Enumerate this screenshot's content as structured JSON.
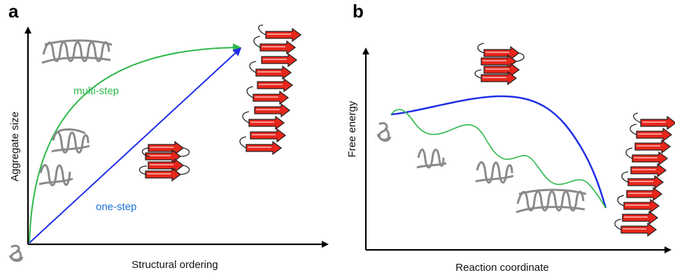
{
  "panels": {
    "a": {
      "label": "a",
      "xlabel": "Structural ordering",
      "ylabel": "Aggregate size",
      "multi_step_label": "multi-step",
      "one_step_label": "one-step"
    },
    "b": {
      "label": "b",
      "xlabel": "Reaction coordinate",
      "ylabel": "Free energy"
    }
  },
  "colors": {
    "multi_step": "#2db84a",
    "one_step": "#1f2ee6",
    "one_step_text": "#1a6fd6",
    "sheet_fill": "#e8261b",
    "sheet_stroke": "#222222",
    "coil": "#8a8a8a",
    "axis": "#000000"
  },
  "icons": [
    "random-coil-icon",
    "helical-oligomer-icon",
    "beta-sheet-icon",
    "protofibril-icon",
    "amyloid-fibril-icon"
  ]
}
